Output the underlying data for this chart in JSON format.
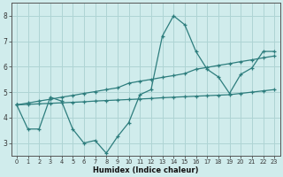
{
  "x": [
    0,
    1,
    2,
    3,
    4,
    5,
    6,
    7,
    8,
    9,
    10,
    11,
    12,
    13,
    14,
    15,
    16,
    17,
    18,
    19,
    20,
    21,
    22,
    23
  ],
  "line_wavy": [
    4.5,
    3.55,
    3.55,
    4.8,
    4.65,
    3.55,
    3.0,
    3.1,
    2.6,
    3.25,
    3.8,
    4.9,
    5.1,
    7.2,
    8.0,
    7.65,
    6.6,
    5.9,
    5.6,
    4.95,
    5.7,
    5.95,
    6.6,
    6.6
  ],
  "line_upper": [
    4.5,
    4.57,
    4.65,
    4.72,
    4.8,
    4.87,
    4.95,
    5.02,
    5.1,
    5.17,
    5.35,
    5.43,
    5.5,
    5.58,
    5.65,
    5.73,
    5.9,
    5.97,
    6.05,
    6.12,
    6.2,
    6.27,
    6.35,
    6.42
  ],
  "line_flat": [
    4.5,
    4.52,
    4.54,
    4.56,
    4.58,
    4.6,
    4.62,
    4.65,
    4.67,
    4.69,
    4.71,
    4.73,
    4.75,
    4.78,
    4.8,
    4.82,
    4.84,
    4.86,
    4.88,
    4.9,
    4.95,
    5.0,
    5.05,
    5.1
  ],
  "color": "#2d7d7d",
  "bg_color": "#d0ecec",
  "grid_color": "#aed4d4",
  "xlabel": "Humidex (Indice chaleur)",
  "ylim": [
    2.5,
    8.5
  ],
  "xlim": [
    -0.5,
    23.5
  ],
  "yticks": [
    3,
    4,
    5,
    6,
    7,
    8
  ],
  "xticks": [
    0,
    1,
    2,
    3,
    4,
    5,
    6,
    7,
    8,
    9,
    10,
    11,
    12,
    13,
    14,
    15,
    16,
    17,
    18,
    19,
    20,
    21,
    22,
    23
  ]
}
